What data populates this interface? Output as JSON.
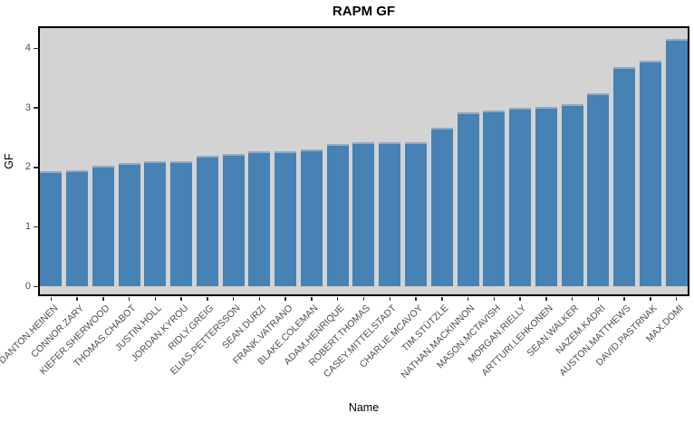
{
  "chart_data": {
    "type": "bar",
    "title": "RAPM GF",
    "xlabel": "Name",
    "ylabel": "GF",
    "categories": [
      "DANTON.HEINEN",
      "CONNOR.ZARY",
      "KIEFER.SHERWOOD",
      "THOMAS.CHABOT",
      "JUSTIN.HOLL",
      "JORDAN.KYROU",
      "RIDLY.GREIG",
      "ELIAS.PETTERSSON",
      "SEAN.DURZI",
      "FRANK.VATRANO",
      "BLAKE.COLEMAN",
      "ADAM.HENRIQUE",
      "ROBERT.THOMAS",
      "CASEY.MITTELSTADT",
      "CHARLIE.MCAVOY",
      "TIM.STÜTZLE",
      "NATHAN.MACKINNON",
      "MASON.MCTAVISH",
      "MORGAN.RIELLY",
      "ARTTURI.LEHKONEN",
      "SEAN.WALKER",
      "NAZEM.KADRI",
      "AUSTON.MATTHEWS",
      "DAVID.PASTRNAK",
      "MAX.DOMI"
    ],
    "values": [
      1.94,
      1.96,
      2.03,
      2.08,
      2.11,
      2.11,
      2.19,
      2.22,
      2.27,
      2.27,
      2.31,
      2.4,
      2.42,
      2.43,
      2.43,
      2.66,
      2.93,
      2.96,
      3.0,
      3.01,
      3.07,
      3.24,
      3.68,
      3.79,
      4.16
    ],
    "yticks": [
      0,
      1,
      2,
      3,
      4
    ],
    "ylim": [
      -0.16,
      4.37
    ],
    "grid": false,
    "legend": false,
    "x_tick_rotation_deg": 45,
    "colors": {
      "bar_fill": "#4682B4",
      "bar_top_edge": "#98A8BC",
      "panel_background": "#D3D3D3",
      "panel_border": "#000000",
      "tick_text": "#4D4D4D",
      "title_text": "#000000"
    }
  }
}
